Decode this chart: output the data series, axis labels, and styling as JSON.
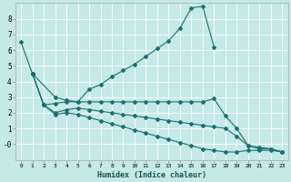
{
  "xlabel": "Humidex (Indice chaleur)",
  "background_color": "#c5e8e8",
  "grid_color": "#ffffff",
  "line_color": "#1a7070",
  "xlim": [
    -0.5,
    23.5
  ],
  "ylim": [
    -1.0,
    9.0
  ],
  "yticks": [
    0,
    1,
    2,
    3,
    4,
    5,
    6,
    7,
    8
  ],
  "ytick_labels": [
    "-0",
    "1",
    "2",
    "3",
    "4",
    "5",
    "6",
    "7",
    "8"
  ],
  "xticks": [
    0,
    1,
    2,
    3,
    4,
    5,
    6,
    7,
    8,
    9,
    10,
    11,
    12,
    13,
    14,
    15,
    16,
    17,
    18,
    19,
    20,
    21,
    22,
    23
  ],
  "line1_x": [
    0,
    1,
    3,
    4,
    5,
    6,
    7,
    8,
    9,
    10,
    11,
    12,
    13,
    14,
    15,
    16,
    17
  ],
  "line1_y": [
    6.5,
    4.5,
    3.0,
    2.8,
    2.7,
    3.5,
    3.8,
    4.3,
    4.7,
    5.1,
    5.6,
    6.1,
    6.6,
    7.4,
    8.7,
    8.8,
    6.2
  ],
  "line2_x": [
    1,
    2,
    3,
    4,
    5,
    6,
    7,
    8,
    9,
    10,
    11,
    12,
    13,
    14,
    15,
    16,
    17,
    18,
    19,
    20,
    21,
    22,
    23
  ],
  "line2_y": [
    4.5,
    2.5,
    2.6,
    2.7,
    2.7,
    2.7,
    2.7,
    2.7,
    2.7,
    2.7,
    2.7,
    2.7,
    2.7,
    2.7,
    2.7,
    2.7,
    2.9,
    1.8,
    1.0,
    -0.1,
    -0.2,
    -0.3,
    -0.5
  ],
  "line3_x": [
    1,
    2,
    3,
    4,
    5,
    6,
    7,
    8,
    9,
    10,
    11,
    12,
    13,
    14,
    15,
    16,
    17,
    18,
    19,
    20,
    21,
    22,
    23
  ],
  "line3_y": [
    4.5,
    2.5,
    2.0,
    2.2,
    2.3,
    2.2,
    2.1,
    2.0,
    1.9,
    1.8,
    1.7,
    1.6,
    1.5,
    1.4,
    1.3,
    1.2,
    1.1,
    1.0,
    0.5,
    -0.1,
    -0.3,
    -0.3,
    -0.5
  ],
  "line4_x": [
    1,
    2,
    3,
    4,
    5,
    6,
    7,
    8,
    9,
    10,
    11,
    12,
    13,
    14,
    15,
    16,
    17,
    18,
    19,
    20,
    21,
    22,
    23
  ],
  "line4_y": [
    4.5,
    2.5,
    1.9,
    2.0,
    1.9,
    1.7,
    1.5,
    1.3,
    1.1,
    0.9,
    0.7,
    0.5,
    0.3,
    0.1,
    -0.1,
    -0.3,
    -0.4,
    -0.5,
    -0.5,
    -0.4,
    -0.4,
    -0.4,
    -0.5
  ]
}
